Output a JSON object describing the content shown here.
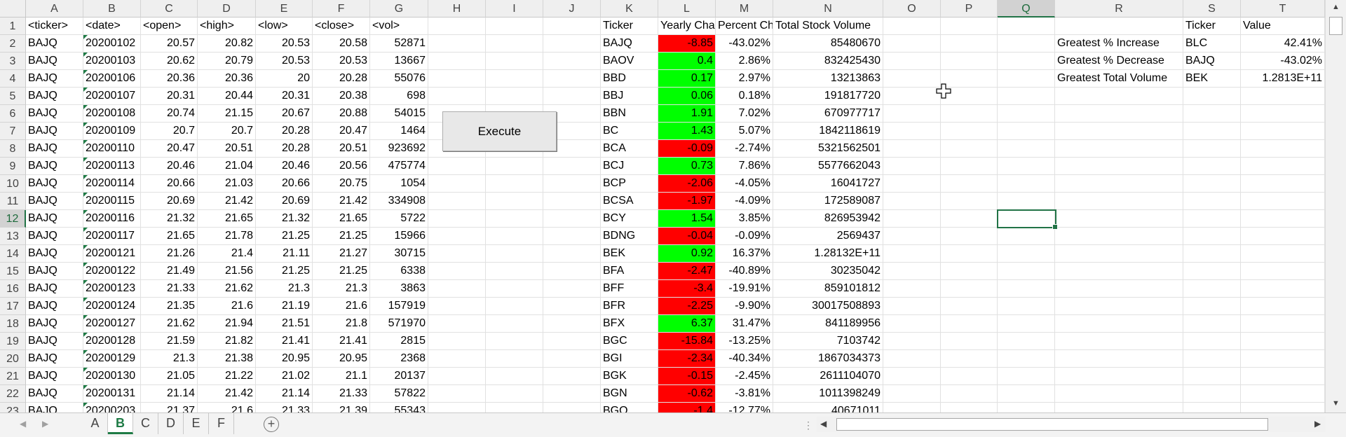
{
  "columns": [
    "A",
    "B",
    "C",
    "D",
    "E",
    "F",
    "G",
    "H",
    "I",
    "J",
    "K",
    "L",
    "M",
    "N",
    "O",
    "P",
    "Q",
    "R",
    "S",
    "T"
  ],
  "selected_column": "Q",
  "row_numbers": [
    "1",
    "2",
    "3",
    "4",
    "5",
    "6",
    "7",
    "8",
    "9",
    "10",
    "11",
    "12",
    "13",
    "14",
    "15",
    "16",
    "17",
    "18",
    "19",
    "20",
    "21",
    "22",
    "23"
  ],
  "selected_row": "12",
  "raw_headers": [
    "<ticker>",
    "<date>",
    "<open>",
    "<high>",
    "<low>",
    "<close>",
    "<vol>"
  ],
  "raw_rows": [
    [
      "BAJQ",
      "20200102",
      "20.57",
      "20.82",
      "20.53",
      "20.58",
      "52871"
    ],
    [
      "BAJQ",
      "20200103",
      "20.62",
      "20.79",
      "20.53",
      "20.53",
      "13667"
    ],
    [
      "BAJQ",
      "20200106",
      "20.36",
      "20.36",
      "20",
      "20.28",
      "55076"
    ],
    [
      "BAJQ",
      "20200107",
      "20.31",
      "20.44",
      "20.31",
      "20.38",
      "698"
    ],
    [
      "BAJQ",
      "20200108",
      "20.74",
      "21.15",
      "20.67",
      "20.88",
      "54015"
    ],
    [
      "BAJQ",
      "20200109",
      "20.7",
      "20.7",
      "20.28",
      "20.47",
      "1464"
    ],
    [
      "BAJQ",
      "20200110",
      "20.47",
      "20.51",
      "20.28",
      "20.51",
      "923692"
    ],
    [
      "BAJQ",
      "20200113",
      "20.46",
      "21.04",
      "20.46",
      "20.56",
      "475774"
    ],
    [
      "BAJQ",
      "20200114",
      "20.66",
      "21.03",
      "20.66",
      "20.75",
      "1054"
    ],
    [
      "BAJQ",
      "20200115",
      "20.69",
      "21.42",
      "20.69",
      "21.42",
      "334908"
    ],
    [
      "BAJQ",
      "20200116",
      "21.32",
      "21.65",
      "21.32",
      "21.65",
      "5722"
    ],
    [
      "BAJQ",
      "20200117",
      "21.65",
      "21.78",
      "21.25",
      "21.25",
      "15966"
    ],
    [
      "BAJQ",
      "20200121",
      "21.26",
      "21.4",
      "21.11",
      "21.27",
      "30715"
    ],
    [
      "BAJQ",
      "20200122",
      "21.49",
      "21.56",
      "21.25",
      "21.25",
      "6338"
    ],
    [
      "BAJQ",
      "20200123",
      "21.33",
      "21.62",
      "21.3",
      "21.3",
      "3863"
    ],
    [
      "BAJQ",
      "20200124",
      "21.35",
      "21.6",
      "21.19",
      "21.6",
      "157919"
    ],
    [
      "BAJQ",
      "20200127",
      "21.62",
      "21.94",
      "21.51",
      "21.8",
      "571970"
    ],
    [
      "BAJQ",
      "20200128",
      "21.59",
      "21.82",
      "21.41",
      "21.41",
      "2815"
    ],
    [
      "BAJQ",
      "20200129",
      "21.3",
      "21.38",
      "20.95",
      "20.95",
      "2368"
    ],
    [
      "BAJQ",
      "20200130",
      "21.05",
      "21.22",
      "21.02",
      "21.1",
      "20137"
    ],
    [
      "BAJQ",
      "20200131",
      "21.14",
      "21.42",
      "21.14",
      "21.33",
      "57822"
    ],
    [
      "BAJQ",
      "20200203",
      "21.37",
      "21.6",
      "21.33",
      "21.39",
      "55343"
    ]
  ],
  "summary_headers": [
    "Ticker",
    "Yearly Change",
    "Percent Change",
    "Total Stock Volume"
  ],
  "summary_rows": [
    {
      "ticker": "BAJQ",
      "change": "-8.85",
      "pct": "-43.02%",
      "volume": "85480670",
      "status": "neg"
    },
    {
      "ticker": "BAOV",
      "change": "0.4",
      "pct": "2.86%",
      "volume": "832425430",
      "status": "pos"
    },
    {
      "ticker": "BBD",
      "change": "0.17",
      "pct": "2.97%",
      "volume": "13213863",
      "status": "pos"
    },
    {
      "ticker": "BBJ",
      "change": "0.06",
      "pct": "0.18%",
      "volume": "191817720",
      "status": "pos"
    },
    {
      "ticker": "BBN",
      "change": "1.91",
      "pct": "7.02%",
      "volume": "670977717",
      "status": "pos"
    },
    {
      "ticker": "BC",
      "change": "1.43",
      "pct": "5.07%",
      "volume": "1842118619",
      "status": "pos"
    },
    {
      "ticker": "BCA",
      "change": "-0.09",
      "pct": "-2.74%",
      "volume": "5321562501",
      "status": "neg"
    },
    {
      "ticker": "BCJ",
      "change": "0.73",
      "pct": "7.86%",
      "volume": "5577662043",
      "status": "pos"
    },
    {
      "ticker": "BCP",
      "change": "-2.06",
      "pct": "-4.05%",
      "volume": "16041727",
      "status": "neg"
    },
    {
      "ticker": "BCSA",
      "change": "-1.97",
      "pct": "-4.09%",
      "volume": "172589087",
      "status": "neg"
    },
    {
      "ticker": "BCY",
      "change": "1.54",
      "pct": "3.85%",
      "volume": "826953942",
      "status": "pos"
    },
    {
      "ticker": "BDNG",
      "change": "-0.04",
      "pct": "-0.09%",
      "volume": "2569437",
      "status": "neg"
    },
    {
      "ticker": "BEK",
      "change": "0.92",
      "pct": "16.37%",
      "volume": "1.28132E+11",
      "status": "pos"
    },
    {
      "ticker": "BFA",
      "change": "-2.47",
      "pct": "-40.89%",
      "volume": "30235042",
      "status": "neg"
    },
    {
      "ticker": "BFF",
      "change": "-3.4",
      "pct": "-19.91%",
      "volume": "859101812",
      "status": "neg"
    },
    {
      "ticker": "BFR",
      "change": "-2.25",
      "pct": "-9.90%",
      "volume": "30017508893",
      "status": "neg"
    },
    {
      "ticker": "BFX",
      "change": "6.37",
      "pct": "31.47%",
      "volume": "841189956",
      "status": "pos"
    },
    {
      "ticker": "BGC",
      "change": "-15.84",
      "pct": "-13.25%",
      "volume": "7103742",
      "status": "neg"
    },
    {
      "ticker": "BGI",
      "change": "-2.34",
      "pct": "-40.34%",
      "volume": "1867034373",
      "status": "neg"
    },
    {
      "ticker": "BGK",
      "change": "-0.15",
      "pct": "-2.45%",
      "volume": "2611104070",
      "status": "neg"
    },
    {
      "ticker": "BGN",
      "change": "-0.62",
      "pct": "-3.81%",
      "volume": "1011398249",
      "status": "neg"
    },
    {
      "ticker": "BGO",
      "change": "-1.4",
      "pct": "-12.77%",
      "volume": "40671011",
      "status": "neg"
    }
  ],
  "greatest_headers": [
    "Ticker",
    "Value"
  ],
  "greatest_rows": [
    {
      "label": "Greatest % Increase",
      "ticker": "BLC",
      "value": "42.41%"
    },
    {
      "label": "Greatest % Decrease",
      "ticker": "BAJQ",
      "value": "-43.02%"
    },
    {
      "label": "Greatest Total Volume",
      "ticker": "BEK",
      "value": "1.2813E+11"
    }
  ],
  "execute_button": {
    "label": "Execute"
  },
  "sheet_tabs": [
    "A",
    "B",
    "C",
    "D",
    "E",
    "F"
  ],
  "active_tab": "B",
  "icons": {
    "scroll_up": "scroll-up-icon",
    "scroll_down": "scroll-down-icon",
    "add_sheet": "add-sheet-icon",
    "error_indicator": "number-as-text-indicator-icon",
    "cursor": "cell-select-cursor-icon"
  },
  "colors": {
    "positive": "#00ff00",
    "negative": "#ff0000",
    "accent": "#217346"
  }
}
